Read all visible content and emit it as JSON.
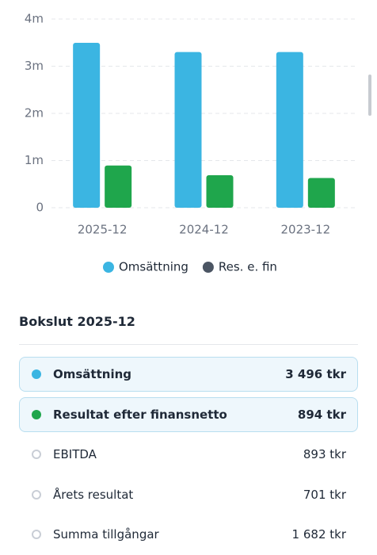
{
  "chart_data": {
    "type": "bar",
    "categories": [
      "2025-12",
      "2024-12",
      "2023-12"
    ],
    "series": [
      {
        "name": "Omsättning",
        "color": "#3bb5e2",
        "legend_color": "#3bb5e2",
        "values": [
          3496000,
          3300000,
          3300000
        ]
      },
      {
        "name": "Res. e. fin",
        "color": "#1fa64c",
        "legend_color": "#4b5563",
        "values": [
          894000,
          690000,
          630000
        ]
      }
    ],
    "ylim": [
      0,
      4000000
    ],
    "yticks": [
      0,
      {
        "value": 1000000,
        "label": "1m"
      },
      {
        "value": 2000000,
        "label": "2m"
      },
      {
        "value": 3000000,
        "label": "3m"
      },
      {
        "value": 4000000,
        "label": "4m"
      }
    ],
    "grid": true
  },
  "section": {
    "title": "Bokslut 2025-12",
    "rows": [
      {
        "label": "Omsättning",
        "value": "3 496 tkr",
        "color": "#3bb5e2"
      },
      {
        "label": "Resultat efter finansnetto",
        "value": "894 tkr",
        "color": "#1fa64c"
      },
      {
        "label": "EBITDA",
        "value": "893 tkr"
      },
      {
        "label": "Årets resultat",
        "value": "701 tkr"
      },
      {
        "label": "Summa tillgångar",
        "value": "1 682 tkr"
      }
    ]
  }
}
